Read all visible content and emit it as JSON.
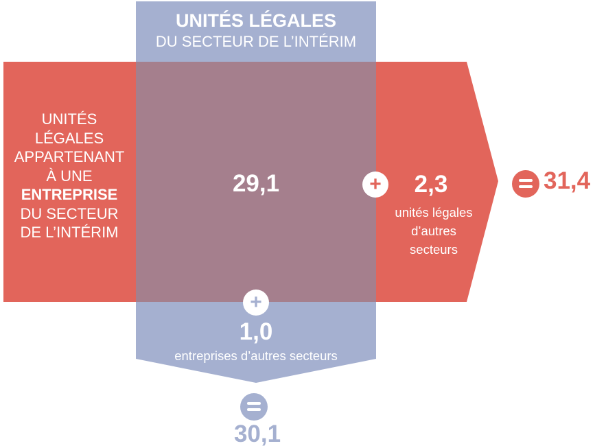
{
  "header": {
    "title_bold": "UNITÉS LÉGALES",
    "title_regular": "DU SECTEUR DE L’INTÉRIM"
  },
  "left_label": {
    "line1": "UNITÉS",
    "line2": "LÉGALES",
    "line3": "APPARTENANT",
    "line4": "À UNE",
    "line5_bold": "ENTREPRISE",
    "line6": "DU SECTEUR",
    "line7": "DE L’INTÉRIM"
  },
  "intersection": {
    "value": "29,1"
  },
  "right_addition": {
    "value": "2,3",
    "line1": "unités légales",
    "line2": "d’autres",
    "line3": "secteurs"
  },
  "bottom_addition": {
    "value": "1,0",
    "label": "entreprises d’autres secteurs"
  },
  "totals": {
    "red_total": "31,4",
    "blue_total": "30,1"
  },
  "colors": {
    "red": "#e2655b",
    "blue": "#a5b0d0",
    "overlap": "#a57f8d"
  }
}
